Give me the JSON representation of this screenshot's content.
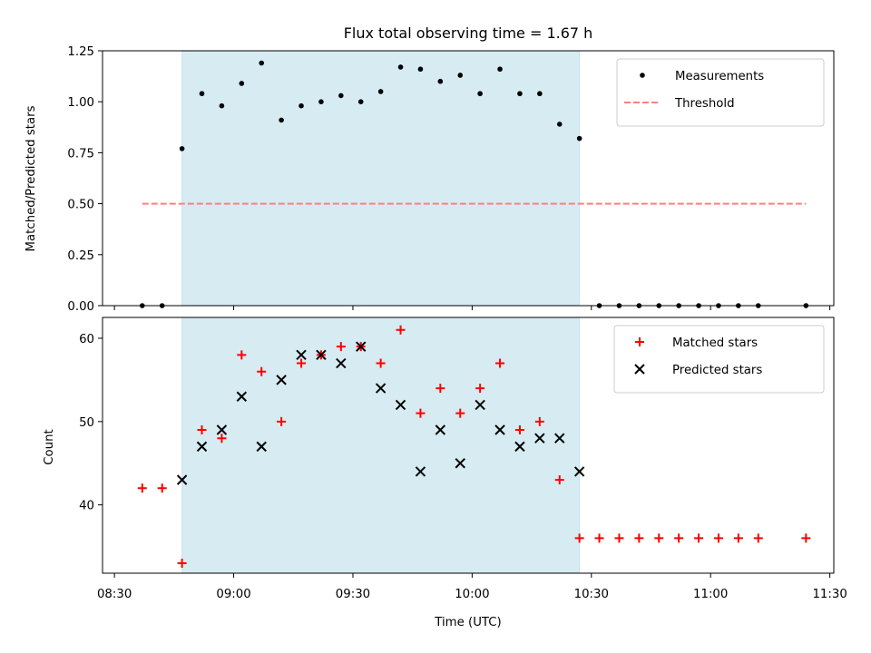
{
  "chart_data": {
    "title": "Flux total observing time = 1.67 h",
    "xlabel": "Time (UTC)",
    "x_tick_labels": [
      "08:30",
      "09:00",
      "09:30",
      "10:00",
      "10:30",
      "11:00",
      "11:30"
    ],
    "xlim": [
      "08:27",
      "11:31"
    ],
    "highlight_span": {
      "start": "08:47",
      "end": "10:27",
      "color": "#add8e6"
    },
    "times": [
      "08:37",
      "08:42",
      "08:47",
      "08:52",
      "08:57",
      "09:02",
      "09:07",
      "09:12",
      "09:17",
      "09:22",
      "09:27",
      "09:32",
      "09:37",
      "09:42",
      "09:47",
      "09:52",
      "09:57",
      "10:02",
      "10:07",
      "10:12",
      "10:17",
      "10:22",
      "10:27",
      "10:32",
      "10:37",
      "10:42",
      "10:47",
      "10:52",
      "10:57",
      "11:02",
      "11:07",
      "11:12",
      "11:24"
    ],
    "panels": [
      {
        "type": "scatter",
        "ylabel": "Matched/Predicted stars",
        "ylim": [
          0,
          1.25
        ],
        "y_tick_labels": [
          "0.00",
          "0.25",
          "0.50",
          "0.75",
          "1.00",
          "1.25"
        ],
        "y_ticks": [
          0,
          0.25,
          0.5,
          0.75,
          1.0,
          1.25
        ],
        "legend_position": "top-right",
        "series": [
          {
            "name": "Measurements",
            "marker": "dot",
            "color": "#000000",
            "values": [
              0,
              0,
              0.77,
              1.04,
              0.98,
              1.09,
              1.19,
              0.91,
              0.98,
              1.0,
              1.03,
              1.0,
              1.05,
              1.17,
              1.16,
              1.1,
              1.13,
              1.04,
              1.16,
              1.04,
              1.04,
              0.89,
              0.82,
              0,
              0,
              0,
              0,
              0,
              0,
              0,
              0,
              0,
              0
            ]
          },
          {
            "name": "Threshold",
            "marker": "dashed-line",
            "color": "#ff7f7f",
            "value": 0.5,
            "x_range": [
              "08:37",
              "11:24"
            ]
          }
        ]
      },
      {
        "type": "scatter",
        "ylabel": "Count",
        "ylim": [
          31.8,
          62.5
        ],
        "y_tick_labels": [
          "40",
          "50",
          "60"
        ],
        "y_ticks": [
          40,
          50,
          60
        ],
        "legend_position": "top-right",
        "series": [
          {
            "name": "Matched stars",
            "marker": "plus",
            "color": "#ff0000",
            "values": [
              42,
              42,
              33,
              49,
              48,
              58,
              56,
              50,
              57,
              58,
              59,
              59,
              57,
              61,
              51,
              54,
              51,
              54,
              57,
              49,
              50,
              43,
              36,
              36,
              36,
              36,
              36,
              36,
              36,
              36,
              36,
              36,
              36
            ]
          },
          {
            "name": "Predicted stars",
            "marker": "x",
            "color": "#000000",
            "values": [
              null,
              null,
              43,
              47,
              49,
              53,
              47,
              55,
              58,
              58,
              57,
              59,
              54,
              52,
              44,
              49,
              45,
              52,
              49,
              47,
              48,
              48,
              44,
              null,
              null,
              null,
              null,
              null,
              null,
              null,
              null,
              null,
              null
            ]
          }
        ]
      }
    ]
  }
}
